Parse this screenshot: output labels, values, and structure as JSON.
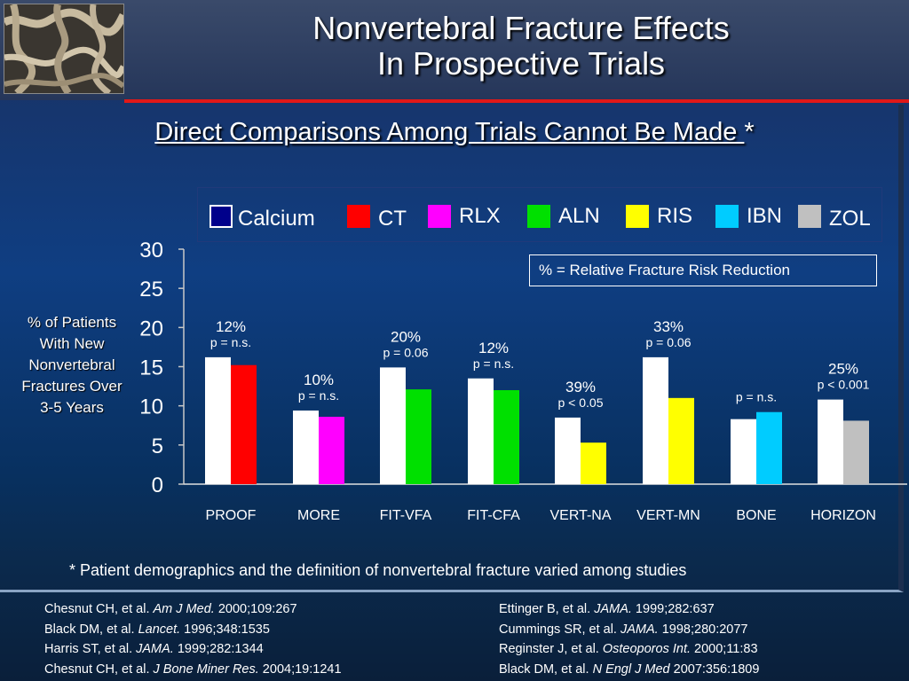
{
  "title": {
    "line1": "Nonvertebral Fracture Effects",
    "line2": "In Prospective Trials"
  },
  "subtitle": {
    "text": "Direct Comparisons Among Trials Cannot Be Made ",
    "star": "*"
  },
  "legend": [
    {
      "label": "Calcium",
      "color": "#ffffff"
    },
    {
      "label": "CT",
      "color": "#ff0000"
    },
    {
      "label": "RLX",
      "color": "#ff00ff"
    },
    {
      "label": "ALN",
      "color": "#00e000"
    },
    {
      "label": "RIS",
      "color": "#ffff00"
    },
    {
      "label": "IBN",
      "color": "#00ccff"
    },
    {
      "label": "ZOL",
      "color": "#c0c0c0"
    }
  ],
  "note": "% = Relative Fracture Risk Reduction",
  "ylabel": "% of Patients With New Nonvertebral Fractures Over 3-5 Years",
  "footnote": "* Patient demographics and the definition of nonvertebral fracture varied among studies",
  "refs_left": [
    {
      "author": "Chesnut CH, et al. ",
      "journal": "Am J Med.",
      "cite": " 2000;109:267"
    },
    {
      "author": "Black DM, et al. ",
      "journal": "Lancet.",
      "cite": " 1996;348:1535"
    },
    {
      "author": "Harris ST, et al. ",
      "journal": "JAMA.",
      "cite": " 1999;282:1344"
    },
    {
      "author": "Chesnut CH, et al. ",
      "journal": "J Bone Miner Res.",
      "cite": " 2004;19:1241"
    }
  ],
  "refs_right": [
    {
      "author": "Ettinger B, et al. ",
      "journal": "JAMA.",
      "cite": " 1999;282:637"
    },
    {
      "author": "Cummings SR, et al. ",
      "journal": "JAMA.",
      "cite": " 1998;280:2077"
    },
    {
      "author": "Reginster J, et al. ",
      "journal": "Osteoporos Int.",
      "cite": " 2000;11:83"
    },
    {
      "author": "Black DM, et al. ",
      "journal": "N Engl J Med",
      "cite": " 2007:356:1809"
    }
  ],
  "chart_data": {
    "type": "bar",
    "ylim": [
      0,
      30
    ],
    "yticks": [
      "0",
      "5",
      "10",
      "15",
      "20",
      "25",
      "30"
    ],
    "categories": [
      "PROOF",
      "MORE",
      "FIT-VFA",
      "FIT-CFA",
      "VERT-NA",
      "VERT-MN",
      "BONE",
      "HORIZON"
    ],
    "groups": [
      {
        "category": "PROOF",
        "control": 16.2,
        "treatment": 15.2,
        "treatment_color": "#ff0000",
        "pct": "12%",
        "p": "p = n.s."
      },
      {
        "category": "MORE",
        "control": 9.4,
        "treatment": 8.6,
        "treatment_color": "#ff00ff",
        "pct": "10%",
        "p": "p = n.s."
      },
      {
        "category": "FIT-VFA",
        "control": 14.9,
        "treatment": 12.1,
        "treatment_color": "#00e000",
        "pct": "20%",
        "p": "p = 0.06"
      },
      {
        "category": "FIT-CFA",
        "control": 13.5,
        "treatment": 12.0,
        "treatment_color": "#00e000",
        "pct": "12%",
        "p": "p = n.s."
      },
      {
        "category": "VERT-NA",
        "control": 8.5,
        "treatment": 5.3,
        "treatment_color": "#ffff00",
        "pct": "39%",
        "p": "p < 0.05"
      },
      {
        "category": "VERT-MN",
        "control": 16.2,
        "treatment": 11.0,
        "treatment_color": "#ffff00",
        "pct": "33%",
        "p": "p = 0.06"
      },
      {
        "category": "BONE",
        "control": 8.3,
        "treatment": 9.2,
        "treatment_color": "#00ccff",
        "pct": "",
        "p": "p = n.s."
      },
      {
        "category": "HORIZON",
        "control": 10.8,
        "treatment": 8.1,
        "treatment_color": "#c0c0c0",
        "pct": "25%",
        "p": "p < 0.001"
      }
    ]
  }
}
